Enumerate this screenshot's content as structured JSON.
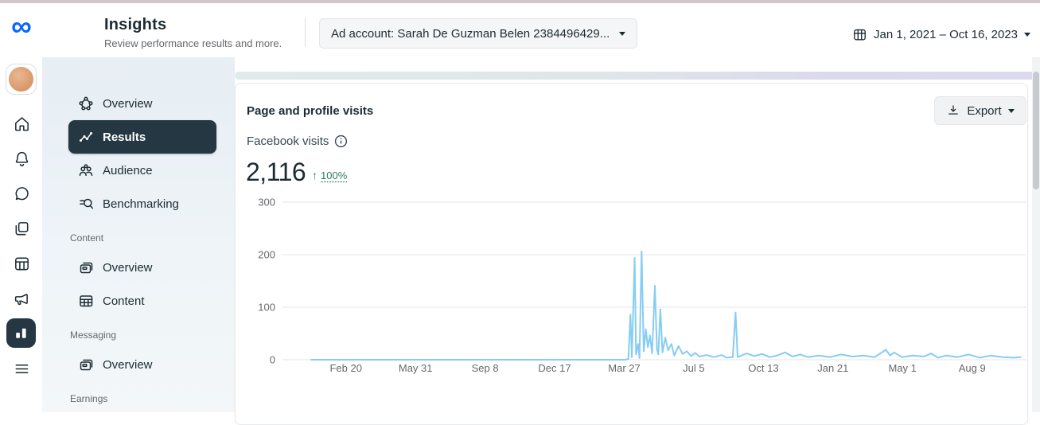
{
  "colors": {
    "accent_blue": "#0866ff",
    "selected_dark": "#253742",
    "positive_green": "#2b7d67",
    "line_blue": "#86CDF3",
    "grid_gray": "#e4e6e9",
    "top_strip": "#d4c5c9"
  },
  "rail": {
    "logo_glyph": "∞",
    "icons": [
      "meta-logo",
      "profile-avatar",
      "home",
      "notifications",
      "messages",
      "posts",
      "planner",
      "ads",
      "insights-selected",
      "all-tools"
    ]
  },
  "header": {
    "title": "Insights",
    "subtitle": "Review performance results and more.",
    "ad_account_label": "Ad account: Sarah De Guzman Belen 2384496429...",
    "date_range": "Jan 1, 2021 – Oct 16, 2023"
  },
  "sidebar": {
    "sections": [
      {
        "label": "",
        "items": [
          {
            "label": "Overview"
          },
          {
            "label": "Results",
            "selected": true
          },
          {
            "label": "Audience"
          },
          {
            "label": "Benchmarking"
          }
        ]
      },
      {
        "label": "Content",
        "items": [
          {
            "label": "Overview"
          },
          {
            "label": "Content"
          }
        ]
      },
      {
        "label": "Messaging",
        "items": [
          {
            "label": "Overview"
          }
        ]
      },
      {
        "label": "Earnings",
        "items": []
      }
    ]
  },
  "main": {
    "panel_title": "Page and profile visits",
    "export_label": "Export",
    "metric": {
      "label": "Facebook visits",
      "value": "2,116",
      "change_arrow": "↑",
      "change_value": "100%"
    }
  },
  "chart_data": {
    "type": "line",
    "title": "Facebook visits",
    "total": 2116,
    "ylim": [
      0,
      300
    ],
    "y_ticks": [
      0,
      100,
      200,
      300
    ],
    "x_unit": "days since Jan 1, 2021",
    "x_ticks": [
      {
        "label": "Feb 20",
        "day": 50
      },
      {
        "label": "May 31",
        "day": 150
      },
      {
        "label": "Sep 8",
        "day": 250
      },
      {
        "label": "Dec 17",
        "day": 350
      },
      {
        "label": "Mar 27",
        "day": 450
      },
      {
        "label": "Jul 5",
        "day": 550
      },
      {
        "label": "Oct 13",
        "day": 650
      },
      {
        "label": "Jan 21",
        "day": 750
      },
      {
        "label": "May 1",
        "day": 850
      },
      {
        "label": "Aug 9",
        "day": 950
      }
    ],
    "grid": true,
    "legend": false,
    "line_color": "#86CDF3",
    "grid_color": "#e4e6e9",
    "points": [
      [
        0,
        0
      ],
      [
        430,
        0
      ],
      [
        450,
        0
      ],
      [
        456,
        1
      ],
      [
        459,
        86
      ],
      [
        461,
        5
      ],
      [
        465,
        194
      ],
      [
        467,
        10
      ],
      [
        470,
        30
      ],
      [
        472,
        3
      ],
      [
        475,
        206
      ],
      [
        478,
        16
      ],
      [
        481,
        58
      ],
      [
        484,
        24
      ],
      [
        487,
        46
      ],
      [
        490,
        12
      ],
      [
        494,
        141
      ],
      [
        497,
        20
      ],
      [
        499,
        10
      ],
      [
        502,
        96
      ],
      [
        505,
        14
      ],
      [
        509,
        42
      ],
      [
        513,
        18
      ],
      [
        518,
        30
      ],
      [
        522,
        8
      ],
      [
        528,
        26
      ],
      [
        534,
        11
      ],
      [
        540,
        16
      ],
      [
        546,
        7
      ],
      [
        552,
        13
      ],
      [
        558,
        6
      ],
      [
        568,
        9
      ],
      [
        579,
        5
      ],
      [
        590,
        9
      ],
      [
        597,
        4
      ],
      [
        606,
        5
      ],
      [
        610,
        90
      ],
      [
        613,
        5
      ],
      [
        626,
        12
      ],
      [
        637,
        7
      ],
      [
        648,
        11
      ],
      [
        659,
        5
      ],
      [
        670,
        8
      ],
      [
        681,
        14
      ],
      [
        692,
        6
      ],
      [
        703,
        10
      ],
      [
        714,
        5
      ],
      [
        730,
        8
      ],
      [
        746,
        5
      ],
      [
        762,
        10
      ],
      [
        778,
        6
      ],
      [
        794,
        8
      ],
      [
        810,
        5
      ],
      [
        826,
        19
      ],
      [
        832,
        8
      ],
      [
        838,
        14
      ],
      [
        849,
        5
      ],
      [
        865,
        8
      ],
      [
        881,
        6
      ],
      [
        891,
        12
      ],
      [
        901,
        4
      ],
      [
        913,
        8
      ],
      [
        929,
        5
      ],
      [
        945,
        10
      ],
      [
        961,
        4
      ],
      [
        977,
        8
      ],
      [
        994,
        5
      ],
      [
        1010,
        4
      ],
      [
        1020,
        5
      ]
    ]
  }
}
